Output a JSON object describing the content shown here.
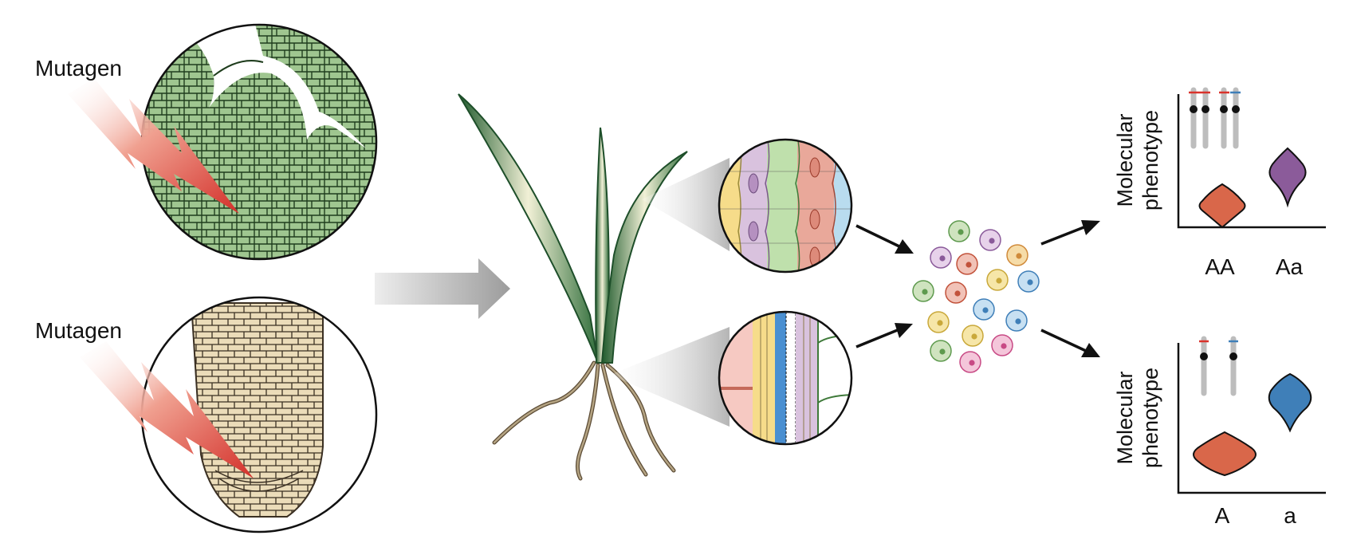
{
  "labels": {
    "mutagen_top": "Mutagen",
    "mutagen_bottom": "Mutagen"
  },
  "plots": [
    {
      "ylabel_line1": "Molecular",
      "ylabel_line2": "phenotype",
      "categories": [
        "AA",
        "Aa"
      ]
    },
    {
      "ylabel_line1": "Molecular",
      "ylabel_line2": "phenotype",
      "categories": [
        "A",
        "a"
      ]
    }
  ],
  "colors": {
    "shoot_cells": "#9cc48e",
    "root_cells": "#eadbb8",
    "lightning": "#d9322b",
    "leaf": "#2e6b3a",
    "root": "#8b7a5c",
    "violin_low": "#d9674a",
    "violin_high_top": "#8b5b9a",
    "violin_high_bottom": "#3f7fb8",
    "chromosome": "#bdbdbd"
  }
}
